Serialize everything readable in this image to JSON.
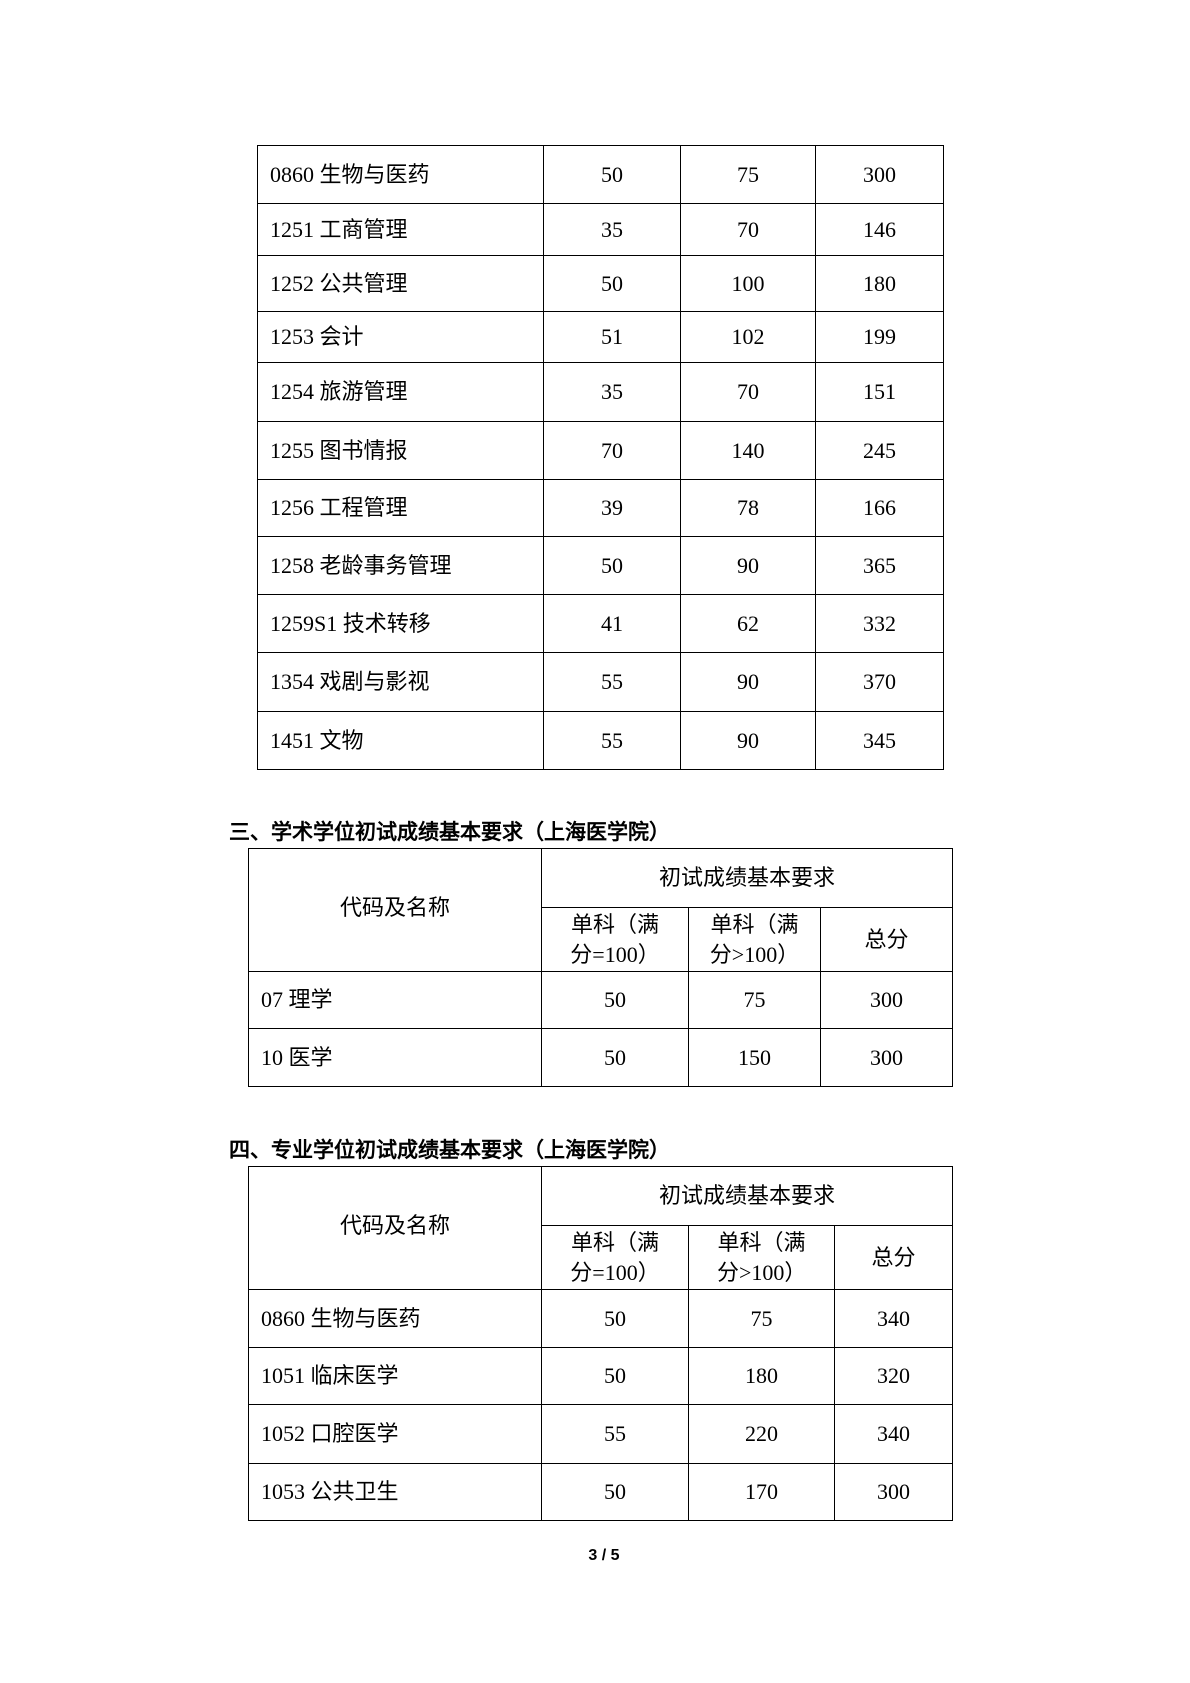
{
  "table_top": {
    "rows": [
      [
        "0860 生物与医药",
        "50",
        "75",
        "300"
      ],
      [
        "1251 工商管理",
        "35",
        "70",
        "146"
      ],
      [
        "1252  公共管理",
        "50",
        "100",
        "180"
      ],
      [
        "1253 会计",
        "51",
        "102",
        "199"
      ],
      [
        "1254  旅游管理",
        "35",
        "70",
        "151"
      ],
      [
        "1255  图书情报",
        "70",
        "140",
        "245"
      ],
      [
        "1256  工程管理",
        "39",
        "78",
        "166"
      ],
      [
        "1258  老龄事务管理",
        "50",
        "90",
        "365"
      ],
      [
        "1259S1  技术转移",
        "41",
        "62",
        "332"
      ],
      [
        "1354  戏剧与影视",
        "55",
        "90",
        "370"
      ],
      [
        "1451  文物",
        "55",
        "90",
        "345"
      ]
    ]
  },
  "section3": {
    "heading": "三、学术学位初试成绩基本要求（上海医学院）",
    "header": {
      "name": "代码及名称",
      "group": "初试成绩基本要求",
      "col1": "单科（满分=100）",
      "col2": "单科（满分>100）",
      "col3": "总分"
    },
    "rows": [
      [
        "07  理学",
        "50",
        "75",
        "300"
      ],
      [
        "10  医学",
        "50",
        "150",
        "300"
      ]
    ]
  },
  "section4": {
    "heading": "四、专业学位初试成绩基本要求（上海医学院）",
    "header": {
      "name": "代码及名称",
      "group": "初试成绩基本要求",
      "col1": "单科（满分=100）",
      "col2": "单科（满分>100）",
      "col3": "总分"
    },
    "rows": [
      [
        "0860  生物与医药",
        "50",
        "75",
        "340"
      ],
      [
        "1051  临床医学",
        "50",
        "180",
        "320"
      ],
      [
        "1052  口腔医学",
        "55",
        "220",
        "340"
      ],
      [
        "1053  公共卫生",
        "50",
        "170",
        "300"
      ]
    ]
  },
  "page_number": "3 / 5"
}
